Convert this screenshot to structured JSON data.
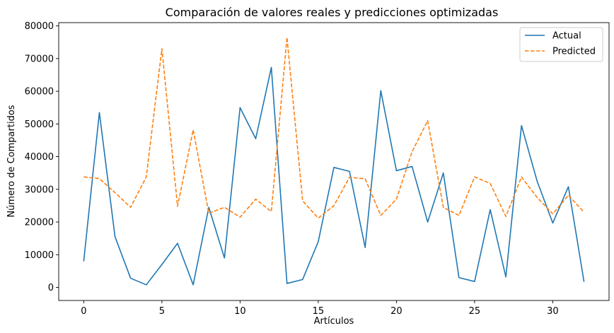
{
  "chart_data": {
    "type": "line",
    "title": "Comparación de valores reales y predicciones optimizadas",
    "xlabel": "Artículos",
    "ylabel": "Número de Compartidos",
    "xlim": [
      -1.6,
      33.6
    ],
    "ylim": [
      -4000,
      81000
    ],
    "xticks": [
      0,
      5,
      10,
      15,
      20,
      25,
      30
    ],
    "yticks": [
      0,
      10000,
      20000,
      30000,
      40000,
      50000,
      60000,
      70000,
      80000
    ],
    "legend_position": "top-right",
    "x": [
      0,
      1,
      2,
      3,
      4,
      5,
      6,
      7,
      8,
      9,
      10,
      11,
      12,
      13,
      14,
      15,
      16,
      17,
      18,
      19,
      20,
      21,
      22,
      23,
      24,
      25,
      26,
      27,
      28,
      29,
      30,
      31,
      32
    ],
    "series": [
      {
        "name": "Actual",
        "color": "#1f77b4",
        "style": "solid",
        "values": [
          8000,
          53500,
          15500,
          2800,
          800,
          7000,
          13500,
          800,
          24500,
          9000,
          55000,
          45500,
          67300,
          1200,
          2400,
          14000,
          36700,
          35500,
          12200,
          60200,
          35700,
          37000,
          20000,
          35000,
          3000,
          1800,
          23800,
          3200,
          49500,
          32500,
          19700,
          30800,
          1700
        ]
      },
      {
        "name": "Predicted",
        "color": "#ff7f0e",
        "style": "dashed",
        "values": [
          33800,
          33300,
          29000,
          24500,
          33800,
          73000,
          24800,
          48200,
          22700,
          24500,
          21500,
          27000,
          23200,
          76500,
          26500,
          21200,
          25000,
          33700,
          33200,
          22000,
          27000,
          41500,
          51000,
          24500,
          22000,
          33800,
          31800,
          21700,
          33800,
          27500,
          22500,
          28200,
          23000
        ]
      }
    ]
  }
}
